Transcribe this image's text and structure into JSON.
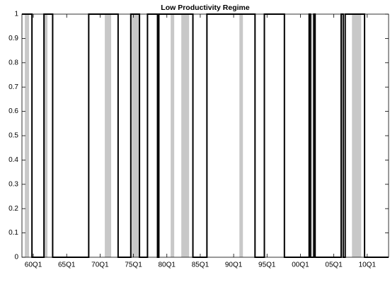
{
  "chart_data": {
    "type": "line",
    "title": "Low Productivity Regime",
    "x": [
      1958.3,
      1959.8,
      1959.8,
      1961.6,
      1961.6,
      1962.9,
      1962.9,
      1968.3,
      1968.3,
      1972.7,
      1972.7,
      1974.6,
      1974.6,
      1975.9,
      1975.9,
      1977.1,
      1977.1,
      1978.6,
      1978.6,
      1978.8,
      1978.8,
      1983.9,
      1983.9,
      1986.0,
      1986.0,
      1993.2,
      1993.2,
      1994.6,
      1994.6,
      1997.6,
      1997.6,
      2001.3,
      2001.3,
      2001.5,
      2001.5,
      2002.0,
      2002.0,
      2002.2,
      2002.2,
      2006.1,
      2006.1,
      2006.4,
      2006.4,
      2006.7,
      2006.7,
      2009.6,
      2009.6,
      2013.2
    ],
    "values": [
      1,
      1,
      0,
      0,
      1,
      1,
      0,
      0,
      1,
      1,
      0,
      0,
      1,
      1,
      0,
      0,
      1,
      1,
      0,
      0,
      1,
      1,
      0,
      0,
      1,
      1,
      0,
      0,
      1,
      1,
      0,
      0,
      1,
      1,
      0,
      0,
      1,
      1,
      0,
      0,
      1,
      1,
      0,
      0,
      1,
      1,
      0,
      0
    ],
    "color": "#000000",
    "bands": [
      [
        1958.73,
        1959.36
      ],
      [
        1961.7,
        1962.12
      ],
      [
        1970.71,
        1971.66
      ],
      [
        1974.74,
        1975.8
      ],
      [
        1980.57,
        1981.1
      ],
      [
        1982.16,
        1983.33
      ],
      [
        1990.86,
        1991.39
      ],
      [
        2001.36,
        2001.78
      ],
      [
        2007.72,
        2009.1
      ]
    ],
    "band_color": "#c8c8c8",
    "xlim": [
      1958.3,
      2013.2
    ],
    "xticks": [
      {
        "value": 1960,
        "label": "60Q1"
      },
      {
        "value": 1965,
        "label": "65Q1"
      },
      {
        "value": 1970,
        "label": "70Q1"
      },
      {
        "value": 1975,
        "label": "75Q1"
      },
      {
        "value": 1980,
        "label": "80Q1"
      },
      {
        "value": 1985,
        "label": "85Q1"
      },
      {
        "value": 1990,
        "label": "90Q1"
      },
      {
        "value": 1995,
        "label": "95Q1"
      },
      {
        "value": 2000,
        "label": "00Q1"
      },
      {
        "value": 2005,
        "label": "05Q1"
      },
      {
        "value": 2010,
        "label": "10Q1"
      }
    ],
    "ylim": [
      0,
      1
    ],
    "yticks": [
      0,
      0.1,
      0.2,
      0.3,
      0.4,
      0.5,
      0.6,
      0.7,
      0.8,
      0.9,
      1
    ]
  }
}
